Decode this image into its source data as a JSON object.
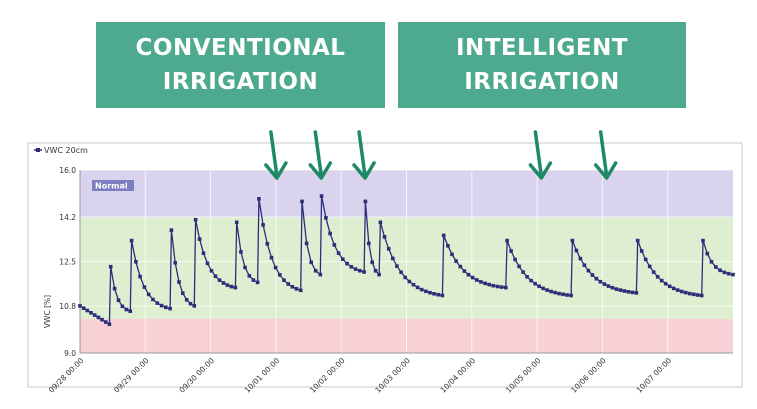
{
  "banners": {
    "left": [
      "CONVENTIONAL",
      "IRRIGATION"
    ],
    "right": [
      "INTELLIGENT",
      "IRRIGATION"
    ]
  },
  "chart_data": {
    "type": "line",
    "legend": "VWC 20cm",
    "ylabel": "VWC [%]",
    "ylim": [
      9.0,
      16.0
    ],
    "yticks": [
      9.0,
      10.8,
      12.5,
      14.2,
      16.0
    ],
    "xlim": [
      0,
      10
    ],
    "xticks": [
      {
        "x": 0.0,
        "label": "09/28 00:00"
      },
      {
        "x": 1.0,
        "label": "09/29 00:00"
      },
      {
        "x": 2.0,
        "label": "09/30 00:00"
      },
      {
        "x": 3.0,
        "label": "10/01 00:00"
      },
      {
        "x": 4.0,
        "label": "10/02 00:00"
      },
      {
        "x": 5.0,
        "label": "10/03 00:00"
      },
      {
        "x": 6.0,
        "label": "10/04 00:00"
      },
      {
        "x": 7.0,
        "label": "10/05 00:00"
      },
      {
        "x": 8.0,
        "label": "10/06 00:00"
      },
      {
        "x": 9.0,
        "label": "10/07 00:00"
      }
    ],
    "bands": [
      {
        "from": 14.2,
        "to": 16.0,
        "color": "#d9d3ee",
        "label": "Normal"
      },
      {
        "from": 10.3,
        "to": 14.2,
        "color": "#deeed0"
      },
      {
        "from": 9.0,
        "to": 10.3,
        "color": "#f7d1d6"
      }
    ],
    "series_color": "#2e2d7a",
    "events": [
      {
        "t": 0.45,
        "peak": 12.3,
        "base": 10.1
      },
      {
        "t": 0.77,
        "peak": 13.3,
        "base": 10.6
      },
      {
        "t": 1.38,
        "peak": 13.7,
        "base": 10.7
      },
      {
        "t": 1.75,
        "peak": 14.1,
        "base": 10.8
      },
      {
        "t": 2.38,
        "peak": 14.0,
        "base": 11.5
      },
      {
        "t": 2.72,
        "peak": 14.9,
        "base": 11.7
      },
      {
        "t": 3.38,
        "peak": 14.8,
        "base": 11.4
      },
      {
        "t": 3.68,
        "peak": 15.0,
        "base": 12.0
      },
      {
        "t": 4.35,
        "peak": 14.8,
        "base": 12.1
      },
      {
        "t": 4.58,
        "peak": 14.0,
        "base": 12.0
      },
      {
        "t": 5.55,
        "peak": 13.5,
        "base": 11.2
      },
      {
        "t": 6.52,
        "peak": 13.3,
        "base": 11.5
      },
      {
        "t": 7.52,
        "peak": 13.3,
        "base": 11.2
      },
      {
        "t": 8.52,
        "peak": 13.3,
        "base": 11.3
      },
      {
        "t": 9.52,
        "peak": 13.3,
        "base": 11.2
      }
    ],
    "start": 10.8,
    "end": {
      "t": 10.0,
      "y": 12.0
    },
    "arrows_at": [
      3.0,
      3.68,
      4.35,
      7.05,
      8.05
    ]
  }
}
